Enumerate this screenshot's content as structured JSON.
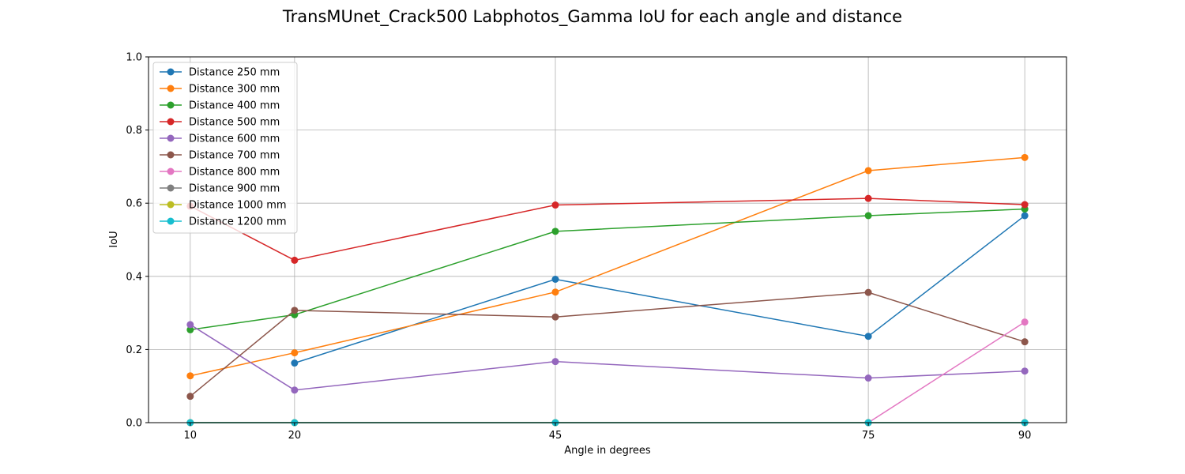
{
  "chart_data": {
    "type": "line",
    "title": "TransMUnet_Crack500 Labphotos_Gamma IoU for each angle and distance",
    "xlabel": "Angle in degrees",
    "ylabel": "IoU",
    "x": [
      10,
      20,
      45,
      75,
      90
    ],
    "xticks": [
      "10",
      "20",
      "45",
      "75",
      "90"
    ],
    "xlim": [
      6,
      94
    ],
    "ylim": [
      0.0,
      1.0
    ],
    "yticks": [
      "0.0",
      "0.2",
      "0.4",
      "0.6",
      "0.8",
      "1.0"
    ],
    "grid": true,
    "legend_position": "top-left",
    "series": [
      {
        "name": "Distance 250 mm",
        "color": "#1f77b4",
        "values": [
          null,
          0.163,
          0.392,
          0.236,
          0.566
        ]
      },
      {
        "name": "Distance 300 mm",
        "color": "#ff7f0e",
        "values": [
          0.128,
          0.191,
          0.357,
          0.689,
          0.725
        ]
      },
      {
        "name": "Distance 400 mm",
        "color": "#2ca02c",
        "values": [
          0.254,
          0.295,
          0.523,
          0.566,
          0.584
        ]
      },
      {
        "name": "Distance 500 mm",
        "color": "#d62728",
        "values": [
          0.592,
          0.444,
          0.595,
          0.613,
          0.596
        ]
      },
      {
        "name": "Distance 600 mm",
        "color": "#9467bd",
        "values": [
          0.268,
          0.089,
          0.167,
          0.122,
          0.141
        ]
      },
      {
        "name": "Distance 700 mm",
        "color": "#8c564b",
        "values": [
          0.072,
          0.307,
          0.289,
          0.356,
          0.221
        ]
      },
      {
        "name": "Distance 800 mm",
        "color": "#e377c2",
        "values": [
          null,
          null,
          null,
          0.0,
          0.275
        ]
      },
      {
        "name": "Distance 900 mm",
        "color": "#7f7f7f",
        "values": [
          0.0,
          0.0,
          0.0,
          0.0,
          0.0
        ]
      },
      {
        "name": "Distance 1000 mm",
        "color": "#bcbd22",
        "values": [
          0.0,
          0.0,
          0.0,
          0.0,
          0.0
        ]
      },
      {
        "name": "Distance 1200 mm",
        "color": "#17becf",
        "values": [
          0.0,
          0.0,
          0.0,
          0.0,
          0.0
        ]
      }
    ]
  }
}
